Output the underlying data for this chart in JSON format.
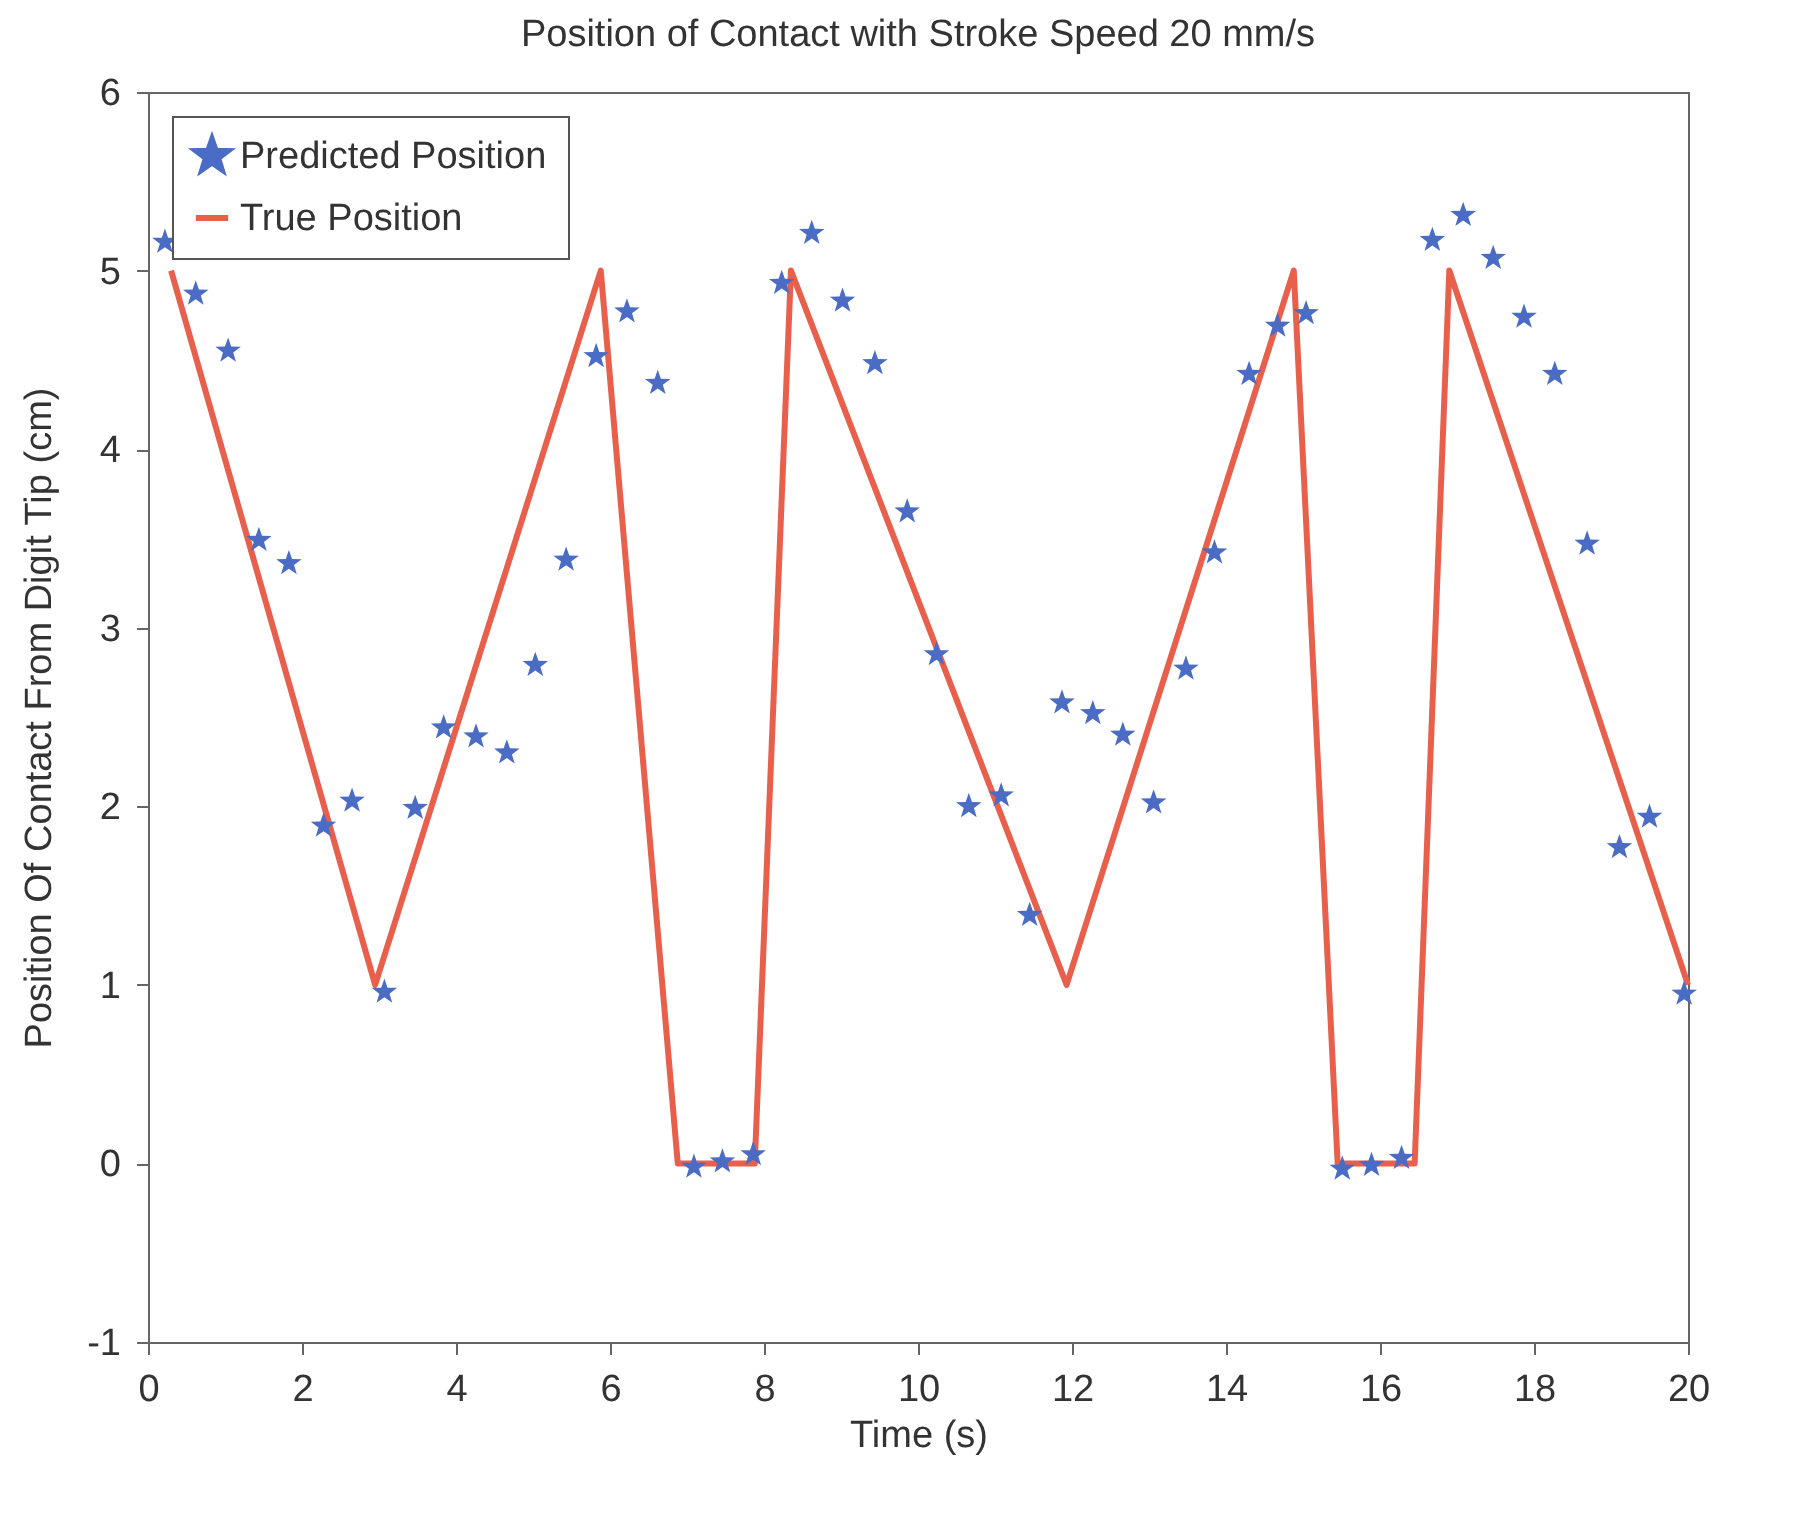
{
  "chart_data": {
    "type": "line",
    "title": "Position of Contact with Stroke Speed 20 mm/s",
    "xlabel": "Time (s)",
    "ylabel": "Position Of Contact From Digit Tip (cm)",
    "xlim": [
      0,
      20
    ],
    "xticks": [
      0,
      2,
      4,
      6,
      8,
      10,
      12,
      14,
      16,
      18,
      20
    ],
    "ylim": [
      -1,
      6
    ],
    "yticks": [
      -1,
      0,
      1,
      2,
      3,
      4,
      5,
      6
    ],
    "grid": false,
    "legend": "top left",
    "series": [
      {
        "name": "Predicted Position",
        "type": "scatter",
        "marker": "star",
        "color": "#4a6cc4",
        "x": [
          0.22,
          0.62,
          1.04,
          1.44,
          1.83,
          2.28,
          2.65,
          3.07,
          3.47,
          3.84,
          4.26,
          4.66,
          5.03,
          5.43,
          5.82,
          6.22,
          6.62,
          7.09,
          7.46,
          7.86,
          8.23,
          8.62,
          9.02,
          9.44,
          9.86,
          10.24,
          10.66,
          11.08,
          11.45,
          11.87,
          12.27,
          12.66,
          13.06,
          13.48,
          13.85,
          14.3,
          14.67,
          15.04,
          15.51,
          15.89,
          16.28,
          16.68,
          17.08,
          17.47,
          17.87,
          18.27,
          18.69,
          19.11,
          19.5,
          19.95
        ],
        "values": [
          5.16,
          4.87,
          4.55,
          3.49,
          3.36,
          1.89,
          2.03,
          0.96,
          1.99,
          2.44,
          2.39,
          2.3,
          2.79,
          3.38,
          4.52,
          4.77,
          4.37,
          -0.02,
          0.01,
          0.05,
          4.93,
          5.21,
          4.83,
          4.48,
          3.65,
          2.85,
          2.0,
          2.06,
          1.39,
          2.58,
          2.52,
          2.4,
          2.02,
          2.77,
          3.42,
          4.42,
          4.69,
          4.76,
          -0.03,
          -0.01,
          0.03,
          5.17,
          5.31,
          5.07,
          4.74,
          4.42,
          3.47,
          1.77,
          1.94,
          0.95
        ]
      },
      {
        "name": "True Position",
        "line_style": "solid",
        "color": "#e8604c",
        "x": [
          0.3,
          2.95,
          5.88,
          6.88,
          7.88,
          8.35,
          11.93,
          14.88,
          15.45,
          16.45,
          16.9,
          20
        ],
        "values": [
          5,
          1,
          5,
          0,
          0,
          5,
          1,
          5,
          0,
          0,
          5,
          1
        ]
      }
    ]
  }
}
